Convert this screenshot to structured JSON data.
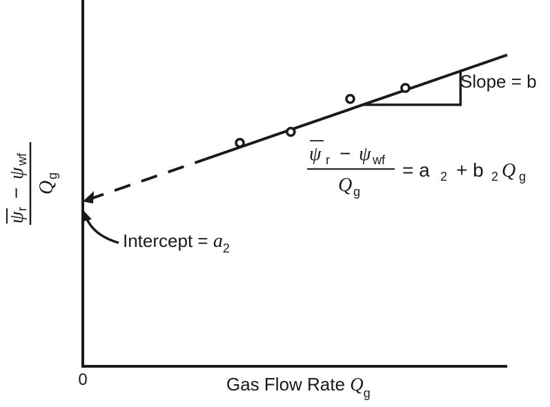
{
  "chart_data": {
    "type": "scatter",
    "title": "",
    "xlabel": "Gas Flow Rate Q_g",
    "ylabel": "(ψ̄_r − ψ_wf) / Q_g",
    "origin_label": "0",
    "grid": false,
    "xlim": [
      0,
      10
    ],
    "ylim": [
      0,
      10
    ],
    "points": [
      {
        "x": 3.7,
        "y": 6.1
      },
      {
        "x": 4.9,
        "y": 6.4
      },
      {
        "x": 6.3,
        "y": 7.3
      },
      {
        "x": 7.6,
        "y": 7.6
      }
    ],
    "fit_line": {
      "intercept": 4.5,
      "slope": 0.4,
      "x_solid_start": 2.9,
      "x_end": 10.0
    },
    "annotations": {
      "intercept_prefix": "Intercept = ",
      "intercept_var": "a",
      "intercept_sub": "2",
      "slope_text": "Slope = b",
      "equation_rhs_a": "= a",
      "equation_rhs_sub": "2",
      "equation_rhs_plus": "+ b",
      "equation_rhs_q": "Q",
      "equation_rhs_qsub": "g",
      "eq_psi": "ψ",
      "eq_r": "r",
      "eq_minus": "−",
      "eq_wf": "wf",
      "eq_Q": "Q",
      "eq_g": "g"
    },
    "axis_labels": {
      "x_text": "Gas Flow Rate ",
      "x_var": "Q",
      "x_sub": "g",
      "y_psi": "ψ",
      "y_r": "r",
      "y_minus": "−",
      "y_wf": "wf",
      "y_Q": "Q",
      "y_g": "g"
    }
  }
}
